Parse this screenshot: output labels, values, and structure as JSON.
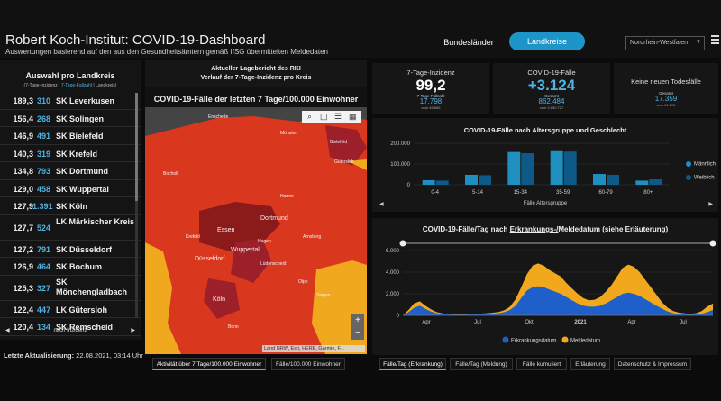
{
  "header": {
    "title": "Robert Koch-Institut: COVID-19-Dashboard",
    "subtitle": "Auswertungen basierend auf den aus den Gesundheitsämtern gemäß IfSG übermittelten Meldedaten",
    "nav_bundeslaender": "Bundesländer",
    "nav_landkreise": "Landkreise",
    "region_select": "Nordrhein-Westfalen"
  },
  "left_panel": {
    "title": "Auswahl pro Landkreis",
    "tab_incidence": "7-Tage-Inzidenz",
    "tab_cases": "7-Tage-Fallzahl",
    "tab_district": "Landkreis",
    "rows": [
      {
        "value": "189,3",
        "count": "310",
        "name": "SK Leverkusen"
      },
      {
        "value": "156,4",
        "count": "268",
        "name": "SK Solingen"
      },
      {
        "value": "146,9",
        "count": "491",
        "name": "SK Bielefeld"
      },
      {
        "value": "140,3",
        "count": "319",
        "name": "SK Krefeld"
      },
      {
        "value": "134,8",
        "count": "793",
        "name": "SK Dortmund"
      },
      {
        "value": "129,0",
        "count": "458",
        "name": "SK Wuppertal"
      },
      {
        "value": "127,9",
        "count": "1.391",
        "name": "SK Köln"
      },
      {
        "value": "127,7",
        "count": "524",
        "name": "LK Märkischer Kreis"
      },
      {
        "value": "127,2",
        "count": "791",
        "name": "SK Düsseldorf"
      },
      {
        "value": "126,9",
        "count": "464",
        "name": "SK Bochum"
      },
      {
        "value": "125,3",
        "count": "327",
        "name": "SK Mönchengladbach"
      },
      {
        "value": "122,4",
        "count": "447",
        "name": "LK Gütersloh"
      },
      {
        "value": "120,4",
        "count": "134",
        "name": "SK Remscheid"
      }
    ],
    "footer": "nach Inzidenz",
    "last_update_label": "Letzte Aktualisierung:",
    "last_update_value": "22.08.2021, 03:14 Uhr"
  },
  "map_panel": {
    "header_line1": "Aktueller Lagebericht des RKI",
    "header_line2": "Verlauf der 7-Tage-Inzidenz pro Kreis",
    "title": "COVID-19-Fälle der letzten 7 Tage/100.000 Einwohner",
    "attribution": "Land NRW, Esri, HERE, Garmin, F...",
    "cities": [
      {
        "name": "Bielefeld"
      },
      {
        "name": "Gütersloh"
      },
      {
        "name": "Hamm"
      },
      {
        "name": "Dortmund"
      },
      {
        "name": "Essen"
      },
      {
        "name": "Hagen"
      },
      {
        "name": "Wuppertal"
      },
      {
        "name": "Düsseldorf"
      },
      {
        "name": "Lüdenscheid"
      },
      {
        "name": "Köln"
      },
      {
        "name": "Bonn"
      },
      {
        "name": "Siegen"
      },
      {
        "name": "Arnsberg"
      },
      {
        "name": "Krefeld"
      },
      {
        "name": "Enschede"
      },
      {
        "name": "Münster"
      },
      {
        "name": "Bocholt"
      },
      {
        "name": "Olpe"
      }
    ],
    "tab_activity": "Aktivität über 7 Tage/100.000 Einwohner",
    "tab_cases": "Fälle/100.000 Einwohner"
  },
  "kpis": {
    "incidence": {
      "label": "7-Tage-Inzidenz",
      "value": "99,2",
      "sub_label": "7-Tage-Fallzahl",
      "sub_value": "17.798",
      "sub_note": "vom 45.565"
    },
    "cases": {
      "label": "COVID-19-Fälle",
      "value": "+3.124",
      "sub_label": "Gesamt",
      "sub_value": "862.484",
      "sub_note": "vom 3.850.727"
    },
    "deaths": {
      "label": "Keine neuen Todesfälle",
      "sub_label": "Gesamt",
      "sub_value": "17.359",
      "sub_note": "vom 91.876"
    }
  },
  "age_chart": {
    "title": "COVID-19-Fälle nach Altersgruppe und Geschlecht",
    "footer": "Fälle Altersgruppe",
    "legend_male": "Männlich",
    "legend_female": "Weiblich"
  },
  "time_chart": {
    "title_prefix": "COVID-19-Fälle/Tag nach ",
    "title_link": "Erkrankungs-/",
    "title_suffix": "Meldedatum (siehe Erläuterung)",
    "legend_onset": "Erkrankungsdatum",
    "legend_report": "Meldedatum"
  },
  "bottom_tabs": {
    "erkrankung": "Fälle/Tag (Erkrankung)",
    "meldung": "Fälle/Tag (Meldung)",
    "kumuliert": "Fälle kumuliert",
    "erlaeuterung": "Erläuterung",
    "datenschutz": "Datenschutz & Impressum"
  },
  "chart_data": [
    {
      "type": "bar",
      "title": "COVID-19-Fälle nach Altersgruppe und Geschlecht",
      "xlabel": "Fälle Altersgruppe",
      "categories": [
        "0-4",
        "5-14",
        "15-34",
        "35-59",
        "60-79",
        "80+"
      ],
      "series": [
        {
          "name": "Männlich",
          "color": "#1e8fbf",
          "values": [
            22000,
            48000,
            158000,
            162000,
            52000,
            20000
          ]
        },
        {
          "name": "Weiblich",
          "color": "#0e5a86",
          "values": [
            20000,
            46000,
            152000,
            160000,
            48000,
            26000
          ]
        }
      ],
      "yticks": [
        "0",
        "100.000",
        "200.000"
      ],
      "ylim": [
        0,
        200000
      ]
    },
    {
      "type": "area",
      "title": "COVID-19-Fälle/Tag nach Erkrankungs-/Meldedatum",
      "xticks": [
        "Apr",
        "Jul",
        "Okt",
        "2021",
        "Apr",
        "Jul"
      ],
      "yticks": [
        "0",
        "2.000",
        "4.000",
        "6.000"
      ],
      "ylim": [
        0,
        6000
      ],
      "series": [
        {
          "name": "Erkrankungsdatum",
          "color": "#1f5fc9",
          "values": [
            0,
            300,
            700,
            900,
            600,
            350,
            200,
            120,
            80,
            60,
            60,
            70,
            80,
            90,
            110,
            130,
            160,
            200,
            300,
            500,
            900,
            1600,
            2300,
            2600,
            2700,
            2600,
            2400,
            2200,
            2000,
            1700,
            1400,
            1100,
            900,
            800,
            800,
            900,
            1100,
            1400,
            1700,
            2000,
            2100,
            2000,
            1800,
            1500,
            1200,
            900,
            600,
            350,
            200,
            120,
            80,
            60,
            80,
            150,
            300,
            500
          ]
        },
        {
          "name": "Meldedatum",
          "color": "#f2a81c",
          "values": [
            0,
            500,
            1100,
            1300,
            900,
            550,
            300,
            180,
            120,
            90,
            90,
            100,
            120,
            140,
            170,
            200,
            250,
            320,
            480,
            800,
            1500,
            2600,
            3800,
            4600,
            4800,
            4600,
            4200,
            3900,
            3600,
            3000,
            2500,
            2000,
            1600,
            1400,
            1450,
            1700,
            2200,
            2800,
            3600,
            4400,
            4700,
            4500,
            4000,
            3300,
            2600,
            1900,
            1200,
            700,
            400,
            250,
            180,
            150,
            200,
            400,
            800,
            1100
          ]
        }
      ]
    }
  ]
}
